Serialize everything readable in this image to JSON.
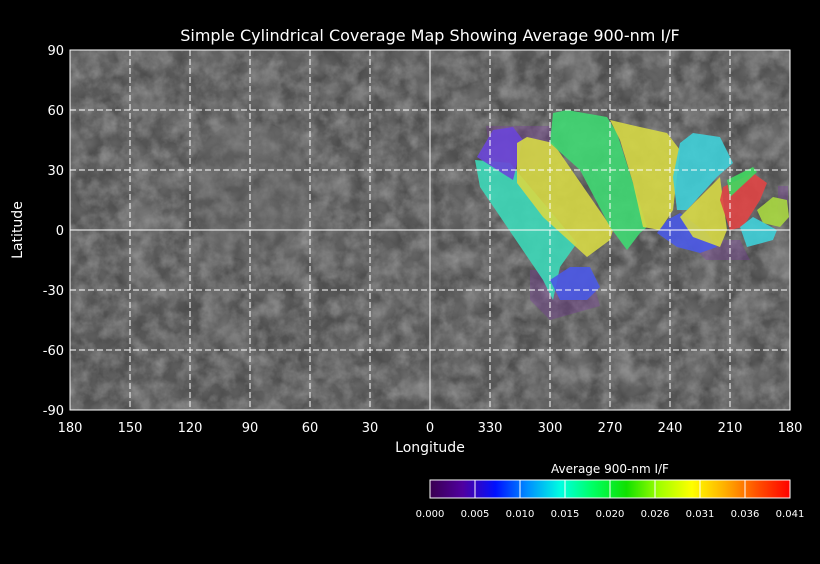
{
  "chart_data": {
    "type": "map",
    "title": "Simple Cylindrical Coverage Map Showing Average 900-nm I/F",
    "xlabel": "Longitude",
    "ylabel": "Latitude",
    "xticks": [
      "180",
      "150",
      "120",
      "90",
      "60",
      "30",
      "0",
      "330",
      "300",
      "270",
      "240",
      "210",
      "180"
    ],
    "yticks": [
      "90",
      "60",
      "30",
      "0",
      "-30",
      "-60",
      "-90"
    ],
    "ylim": [
      -90,
      90
    ],
    "grid": true,
    "colorbar": {
      "title": "Average 900-nm I/F",
      "ticks": [
        "0.000",
        "0.005",
        "0.010",
        "0.015",
        "0.020",
        "0.026",
        "0.031",
        "0.036",
        "0.041"
      ],
      "colors": [
        "#3a0050",
        "#5000a0",
        "#0010ff",
        "#0090ff",
        "#00ffe0",
        "#00ff60",
        "#10e000",
        "#a0ff00",
        "#ffff00",
        "#ffb000",
        "#ff5000",
        "#ff0000"
      ]
    },
    "footprints": [
      {
        "value": 0.004,
        "color": "#7a3aa0",
        "opacity": 0.35,
        "points": [
          [
            332,
            52
          ],
          [
            300,
            52
          ],
          [
            296,
            40
          ],
          [
            310,
            30
          ],
          [
            330,
            38
          ]
        ]
      },
      {
        "value": 0.004,
        "color": "#7a3aa0",
        "opacity": 0.35,
        "points": [
          [
            310,
            -20
          ],
          [
            280,
            -20
          ],
          [
            275,
            -38
          ],
          [
            300,
            -45
          ],
          [
            310,
            -35
          ]
        ]
      },
      {
        "value": 0.004,
        "color": "#7a3aa0",
        "opacity": 0.35,
        "points": [
          [
            232,
            -5
          ],
          [
            205,
            -5
          ],
          [
            200,
            -15
          ],
          [
            222,
            -15
          ]
        ]
      },
      {
        "value": 0.004,
        "color": "#7a3aa0",
        "opacity": 0.35,
        "points": [
          [
            186,
            22
          ],
          [
            181,
            22
          ],
          [
            181,
            5
          ],
          [
            186,
            8
          ]
        ]
      },
      {
        "value": 0.017,
        "color": "#3dd8b8",
        "opacity": 0.9,
        "points": [
          [
            337.5,
            35
          ],
          [
            320,
            33.5
          ],
          [
            286.5,
            -6.5
          ],
          [
            295,
            -18.5
          ],
          [
            298.5,
            -35
          ],
          [
            303.5,
            -25
          ],
          [
            335,
            21.5
          ]
        ]
      },
      {
        "value": 0.008,
        "color": "#4a5ae6",
        "opacity": 0.9,
        "points": [
          [
            300,
            -25
          ],
          [
            290,
            -18.5
          ],
          [
            280,
            -18.5
          ],
          [
            275,
            -28.5
          ],
          [
            281.5,
            -35
          ],
          [
            295,
            -35
          ]
        ]
      },
      {
        "value": 0.006,
        "color": "#6a45d8",
        "opacity": 0.9,
        "points": [
          [
            328.5,
            50
          ],
          [
            318.5,
            51.5
          ],
          [
            313.5,
            45
          ],
          [
            318.5,
            25
          ],
          [
            336.5,
            36.5
          ]
        ]
      },
      {
        "value": 0.031,
        "color": "#d6d845",
        "opacity": 0.9,
        "points": [
          [
            316.5,
            43.5
          ],
          [
            311.5,
            46.5
          ],
          [
            298.5,
            43.5
          ],
          [
            268.5,
            0
          ],
          [
            270,
            -5
          ],
          [
            281.5,
            -13.5
          ],
          [
            303.5,
            6.5
          ],
          [
            316.5,
            23.5
          ]
        ]
      },
      {
        "value": 0.021,
        "color": "#3fd872",
        "opacity": 0.9,
        "points": [
          [
            298.5,
            58.5
          ],
          [
            291.5,
            60
          ],
          [
            271.5,
            56.5
          ],
          [
            266.5,
            48.5
          ],
          [
            251.5,
            1.5
          ],
          [
            255,
            -1.5
          ],
          [
            261.5,
            -10
          ],
          [
            270,
            1.5
          ],
          [
            285,
            30
          ],
          [
            300,
            43.5
          ]
        ]
      },
      {
        "value": 0.031,
        "color": "#d6d845",
        "opacity": 0.9,
        "points": [
          [
            270,
            55
          ],
          [
            255,
            51.5
          ],
          [
            241.5,
            48.5
          ],
          [
            235,
            40
          ],
          [
            238.5,
            10
          ],
          [
            245,
            0
          ],
          [
            253.5,
            1.5
          ],
          [
            258.5,
            23.5
          ],
          [
            265,
            45
          ]
        ]
      },
      {
        "value": 0.015,
        "color": "#3fcfd8",
        "opacity": 0.9,
        "points": [
          [
            235,
            43.5
          ],
          [
            228.5,
            48.5
          ],
          [
            215,
            46.5
          ],
          [
            208.5,
            33.5
          ],
          [
            216.5,
            26.5
          ],
          [
            231.5,
            10
          ],
          [
            236.5,
            10
          ],
          [
            238.5,
            26.5
          ]
        ]
      },
      {
        "value": 0.008,
        "color": "#4a5ae6",
        "opacity": 0.9,
        "points": [
          [
            246.5,
            -1.5
          ],
          [
            241.5,
            5
          ],
          [
            235,
            8.5
          ],
          [
            221.5,
            -1.5
          ],
          [
            216.5,
            -8.5
          ],
          [
            225,
            -11.5
          ],
          [
            236.5,
            -8.5
          ]
        ]
      },
      {
        "value": 0.031,
        "color": "#d6d845",
        "opacity": 0.9,
        "points": [
          [
            235,
            6.5
          ],
          [
            215,
            26.5
          ],
          [
            211.5,
            0
          ],
          [
            215,
            -8.5
          ],
          [
            228.5,
            -3.5
          ]
        ]
      },
      {
        "value": 0.04,
        "color": "#e04545",
        "opacity": 0.9,
        "points": [
          [
            213.5,
            21.5
          ],
          [
            198.5,
            28.5
          ],
          [
            191.5,
            23.5
          ],
          [
            195,
            15
          ],
          [
            203.5,
            1.5
          ],
          [
            210,
            0
          ],
          [
            215,
            15
          ]
        ]
      },
      {
        "value": 0.021,
        "color": "#3fd860",
        "opacity": 0.9,
        "points": [
          [
            211.5,
            25
          ],
          [
            198.5,
            31.5
          ],
          [
            196.5,
            29
          ],
          [
            210,
            16.5
          ]
        ]
      },
      {
        "value": 0.028,
        "color": "#a8d840",
        "opacity": 0.9,
        "points": [
          [
            196.5,
            10
          ],
          [
            188.5,
            16.5
          ],
          [
            181.5,
            15
          ],
          [
            180.5,
            6.5
          ],
          [
            185,
            1.5
          ],
          [
            193.5,
            3.5
          ]
        ]
      },
      {
        "value": 0.015,
        "color": "#3fcfd8",
        "opacity": 0.9,
        "points": [
          [
            205,
            1.5
          ],
          [
            198.5,
            6.5
          ],
          [
            186.5,
            0
          ],
          [
            188.5,
            -5
          ],
          [
            201.5,
            -8.5
          ]
        ]
      }
    ]
  }
}
